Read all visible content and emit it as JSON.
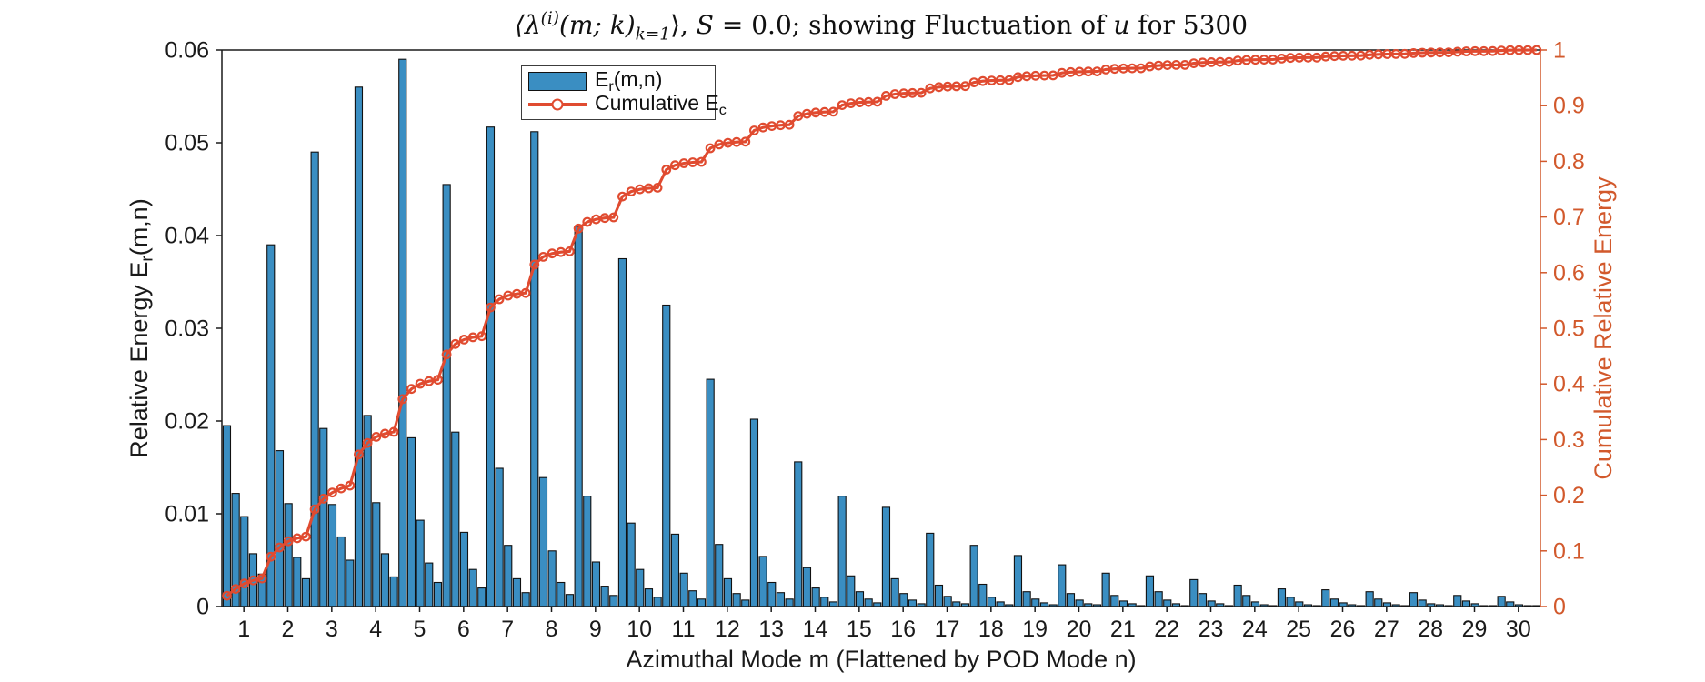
{
  "figure": {
    "title_parts": {
      "open": "⟨λ",
      "sup": "(i)",
      "args": "(m; k)",
      "sub": "k=1",
      "close": "⟩, ",
      "s_var": "S",
      "mid": " = 0.0; showing Fluctuation of ",
      "u_var": "u",
      "tail": " for 5300"
    }
  },
  "axes": {
    "left": {
      "label_pre": "Relative Energy E",
      "label_sub": "r",
      "label_post": "(m,n)",
      "tick_labels": [
        "0",
        "0.01",
        "0.02",
        "0.03",
        "0.04",
        "0.05",
        "0.06"
      ],
      "color": "#1a1a1a"
    },
    "right": {
      "label": "Cumulative Relative Energy",
      "tick_labels": [
        "0",
        "0.1",
        "0.2",
        "0.3",
        "0.4",
        "0.5",
        "0.6",
        "0.7",
        "0.8",
        "0.9",
        "1"
      ],
      "color": "#d2592c"
    },
    "x": {
      "label": "Azimuthal Mode m (Flattened by POD Mode n)",
      "tick_labels": [
        "1",
        "2",
        "3",
        "4",
        "5",
        "6",
        "7",
        "8",
        "9",
        "10",
        "11",
        "12",
        "13",
        "14",
        "15",
        "16",
        "17",
        "18",
        "19",
        "20",
        "21",
        "22",
        "23",
        "24",
        "25",
        "26",
        "27",
        "28",
        "29",
        "30"
      ]
    }
  },
  "legend": {
    "items": [
      {
        "pre": "E",
        "sub": "r",
        "post": "(m,n)",
        "swatch": "bar"
      },
      {
        "pre": "Cumulative E",
        "sub": "c",
        "post": "",
        "swatch": "line-circle-marker"
      }
    ]
  },
  "chart_data": {
    "type": "bar",
    "title": "⟨λ^(i)(m; k)_{k=1}⟩, S = 0.0; showing Fluctuation of u for 5300",
    "xlabel": "Azimuthal Mode m (Flattened by POD Mode n)",
    "ylabel_left": "Relative Energy E_r(m,n)",
    "ylabel_right": "Cumulative Relative Energy",
    "ylim_left": [
      0,
      0.06
    ],
    "ylim_right": [
      0,
      1
    ],
    "grid": false,
    "legend_position": "top-left-inside",
    "categories": [
      1,
      2,
      3,
      4,
      5,
      6,
      7,
      8,
      9,
      10,
      11,
      12,
      13,
      14,
      15,
      16,
      17,
      18,
      19,
      20,
      21,
      22,
      23,
      24,
      25,
      26,
      27,
      28,
      29,
      30
    ],
    "bars_per_group": 5,
    "series": [
      {
        "name": "E_r(m,n)",
        "type": "grouped-bars",
        "values_by_group": [
          [
            0.0195,
            0.0122,
            0.0097,
            0.0057,
            0.0035
          ],
          [
            0.039,
            0.0168,
            0.0111,
            0.0053,
            0.003
          ],
          [
            0.049,
            0.0192,
            0.011,
            0.0075,
            0.005
          ],
          [
            0.056,
            0.0206,
            0.0112,
            0.0057,
            0.0032
          ],
          [
            0.059,
            0.0182,
            0.0093,
            0.0047,
            0.0026
          ],
          [
            0.0455,
            0.0188,
            0.008,
            0.004,
            0.002
          ],
          [
            0.0517,
            0.0149,
            0.0066,
            0.003,
            0.0015
          ],
          [
            0.0512,
            0.0139,
            0.006,
            0.0026,
            0.0013
          ],
          [
            0.041,
            0.0119,
            0.0048,
            0.0022,
            0.0012
          ],
          [
            0.0375,
            0.009,
            0.004,
            0.0019,
            0.001
          ],
          [
            0.0325,
            0.0078,
            0.0036,
            0.0017,
            0.0008
          ],
          [
            0.0245,
            0.0067,
            0.003,
            0.0014,
            0.0007
          ],
          [
            0.0202,
            0.0054,
            0.0026,
            0.0015,
            0.0008
          ],
          [
            0.0156,
            0.0042,
            0.002,
            0.001,
            0.0005
          ],
          [
            0.0119,
            0.0033,
            0.0016,
            0.0008,
            0.0004
          ],
          [
            0.0107,
            0.003,
            0.0014,
            0.0007,
            0.0003
          ],
          [
            0.0079,
            0.0023,
            0.0011,
            0.0005,
            0.0003
          ],
          [
            0.0066,
            0.0024,
            0.001,
            0.0005,
            0.0002
          ],
          [
            0.0055,
            0.0016,
            0.0008,
            0.0004,
            0.0002
          ],
          [
            0.0045,
            0.0014,
            0.0007,
            0.0003,
            0.0002
          ],
          [
            0.0036,
            0.0012,
            0.0006,
            0.0003,
            0.0001
          ],
          [
            0.0033,
            0.0016,
            0.0007,
            0.0003,
            0.0001
          ],
          [
            0.0029,
            0.0014,
            0.0006,
            0.0003,
            0.0001
          ],
          [
            0.0023,
            0.0012,
            0.0005,
            0.0002,
            0.0001
          ],
          [
            0.0019,
            0.001,
            0.0005,
            0.0002,
            0.0001
          ],
          [
            0.0018,
            0.0008,
            0.0004,
            0.0002,
            0.0001
          ],
          [
            0.0016,
            0.0008,
            0.0004,
            0.0002,
            0.0001
          ],
          [
            0.0015,
            0.0007,
            0.0003,
            0.0002,
            0.0001
          ],
          [
            0.0012,
            0.0006,
            0.0003,
            0.0001,
            0.0001
          ],
          [
            0.0011,
            0.0005,
            0.0002,
            0.0001,
            0.0001
          ]
        ]
      },
      {
        "name": "Cumulative E_c",
        "type": "line-with-circle-markers",
        "derivation": "running cumulative sum of all flattened bar values, normalized so the final point equals 1.0 on the right axis",
        "start_value": 0.02,
        "end_value": 1.0
      }
    ],
    "colors": {
      "bar_fill": "#3a8ec2",
      "bar_edge": "#111111",
      "line": "#e04b30",
      "right_axis": "#d2592c",
      "axis_dark": "#1a1a1a"
    }
  }
}
